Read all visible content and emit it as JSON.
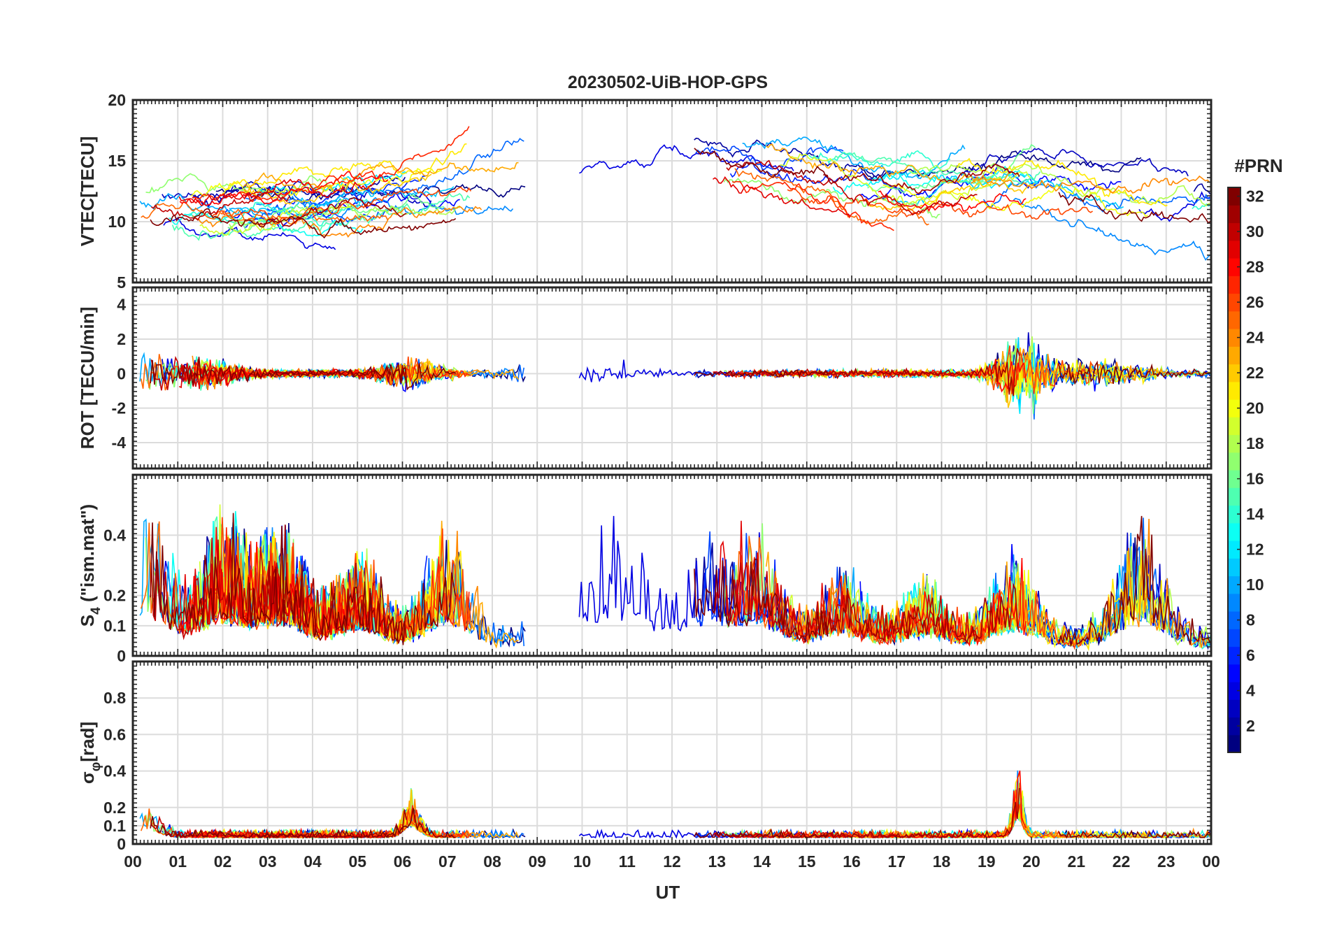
{
  "figure": {
    "title": "20230502-UiB-HOP-GPS"
  },
  "colorbar": {
    "label": "#PRN",
    "range": [
      1,
      32
    ],
    "ticks": [
      2,
      4,
      6,
      8,
      10,
      12,
      14,
      16,
      18,
      20,
      22,
      24,
      26,
      28,
      30,
      32
    ],
    "colormap": "jet",
    "levels": 32
  },
  "chart_data": [
    {
      "type": "line",
      "panel": "vtec",
      "ylabel": "VTEC[TECU]",
      "ylim": [
        5,
        20
      ],
      "yticks": [
        5,
        10,
        15,
        20
      ],
      "xlim": [
        0,
        24
      ],
      "grid": true,
      "series_count": 32
    },
    {
      "type": "line",
      "panel": "rot",
      "ylabel": "ROT [TECU/min]",
      "ylim": [
        -5.5,
        5
      ],
      "yticks": [
        -4,
        -2,
        0,
        2,
        4
      ],
      "xlim": [
        0,
        24
      ],
      "grid": true,
      "series_count": 32
    },
    {
      "type": "line",
      "panel": "s4",
      "ylabel_main": "S",
      "ylabel_sub": "4",
      "ylabel_rest": " (\"ism.mat\")",
      "ylim": [
        0,
        0.6
      ],
      "yticks": [
        0,
        0.1,
        0.2,
        0.4
      ],
      "xlim": [
        0,
        24
      ],
      "grid": true,
      "series_count": 32
    },
    {
      "type": "line",
      "panel": "sigma-phi",
      "ylabel_main": "σ",
      "ylabel_sub": "φ",
      "ylabel_rest": "[rad]",
      "ylim": [
        0,
        1
      ],
      "yticks": [
        0,
        0.1,
        0.2,
        0.4,
        0.6,
        0.8
      ],
      "xlim": [
        0,
        24
      ],
      "grid": true,
      "series_count": 32
    }
  ],
  "xaxis": {
    "label": "UT",
    "ticks": [
      "00",
      "01",
      "02",
      "03",
      "04",
      "05",
      "06",
      "07",
      "08",
      "09",
      "10",
      "11",
      "12",
      "13",
      "14",
      "15",
      "16",
      "17",
      "18",
      "19",
      "20",
      "21",
      "22",
      "23",
      "00"
    ]
  }
}
